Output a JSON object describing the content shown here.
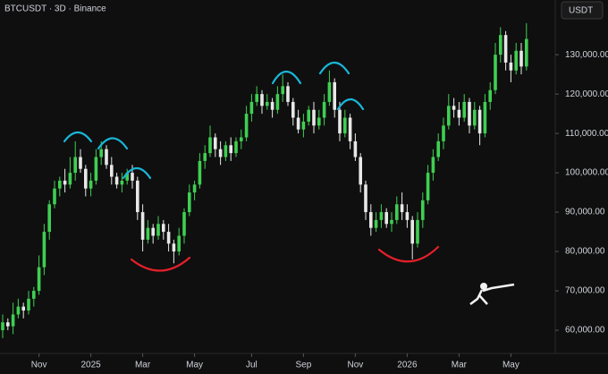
{
  "chart_data": {
    "type": "candlestick",
    "title": "BTCUSDT · 3D · Binance",
    "currency": "USDT",
    "up_color": "#3fcf52",
    "down_color": "#e8e8e8",
    "ylim": [
      54100,
      143900
    ],
    "yticks": [
      {
        "value": 60000,
        "label": "60,000.00"
      },
      {
        "value": 70000,
        "label": "70,000.00"
      },
      {
        "value": 80000,
        "label": "80,000.00"
      },
      {
        "value": 90000,
        "label": "90,000.00"
      },
      {
        "value": 100000,
        "label": "100,000.00"
      },
      {
        "value": 110000,
        "label": "110,000.00"
      },
      {
        "value": 120000,
        "label": "120,000.00"
      },
      {
        "value": 130000,
        "label": "130,000.00"
      }
    ],
    "xticks": [
      {
        "value": 7,
        "label": "Nov"
      },
      {
        "value": 17,
        "label": "2025"
      },
      {
        "value": 27,
        "label": "Mar"
      },
      {
        "value": 37,
        "label": "May"
      },
      {
        "value": 48,
        "label": "Jul"
      },
      {
        "value": 58,
        "label": "Sep"
      },
      {
        "value": 68,
        "label": "Nov"
      },
      {
        "value": 78,
        "label": "2026"
      },
      {
        "value": 88,
        "label": "Mar"
      },
      {
        "value": 98,
        "label": "May"
      }
    ],
    "open": [
      60000,
      62000,
      61000,
      64000,
      66000,
      65000,
      68000,
      70000,
      76000,
      85000,
      92000,
      96000,
      98000,
      97000,
      100000,
      104000,
      101000,
      96000,
      98000,
      104000,
      106000,
      102000,
      99000,
      97000,
      98000,
      100000,
      98000,
      90000,
      83000,
      86000,
      84000,
      87000,
      85000,
      82000,
      80000,
      84000,
      90000,
      95000,
      97000,
      103000,
      105000,
      109000,
      106000,
      104000,
      107000,
      105000,
      108000,
      109000,
      115000,
      118000,
      120000,
      117000,
      118000,
      116000,
      120000,
      122000,
      118000,
      114000,
      111000,
      113000,
      116000,
      112000,
      114000,
      118000,
      123000,
      116000,
      110000,
      114000,
      108000,
      104000,
      97000,
      90000,
      86000,
      88000,
      90000,
      87000,
      88000,
      92000,
      90000,
      88000,
      82000,
      88000,
      93000,
      100000,
      104000,
      108000,
      112000,
      117000,
      116000,
      114000,
      118000,
      112000,
      116000,
      110000,
      118000,
      121000,
      130000,
      135000,
      128000,
      126000,
      131000,
      127000
    ],
    "high": [
      64000,
      63000,
      67000,
      68000,
      67000,
      70000,
      71000,
      79000,
      87000,
      93000,
      98000,
      99000,
      101000,
      104000,
      108000,
      106000,
      102000,
      100000,
      106000,
      108000,
      107000,
      104000,
      100000,
      100000,
      101000,
      102000,
      99000,
      92000,
      88000,
      87000,
      89000,
      88000,
      87000,
      83000,
      86000,
      91000,
      97000,
      98000,
      105000,
      107000,
      112000,
      110000,
      108000,
      108000,
      109000,
      109000,
      111000,
      117000,
      120000,
      122000,
      121000,
      120000,
      119000,
      122000,
      125000,
      123000,
      119000,
      116000,
      115000,
      117000,
      118000,
      116000,
      120000,
      126000,
      124000,
      118000,
      116000,
      115000,
      110000,
      105000,
      98000,
      92000,
      90000,
      92000,
      91000,
      90000,
      94000,
      95000,
      92000,
      89000,
      90000,
      95000,
      102000,
      106000,
      110000,
      114000,
      120000,
      119000,
      118000,
      120000,
      119000,
      118000,
      117000,
      120000,
      123000,
      133000,
      137000,
      136000,
      130000,
      133000,
      133000,
      138000
    ],
    "low": [
      58000,
      60000,
      59000,
      63000,
      63000,
      64000,
      66000,
      69000,
      74000,
      83000,
      91000,
      94000,
      95000,
      96000,
      98000,
      100000,
      94000,
      94000,
      97000,
      102000,
      101000,
      97000,
      96000,
      95000,
      97000,
      96000,
      88000,
      80000,
      82000,
      82000,
      83000,
      83000,
      80000,
      77000,
      79000,
      82000,
      89000,
      93000,
      96000,
      101000,
      104000,
      104000,
      102000,
      103000,
      103000,
      104000,
      106000,
      108000,
      113000,
      117000,
      115000,
      116000,
      114000,
      115000,
      118000,
      117000,
      112000,
      110000,
      109000,
      112000,
      110000,
      111000,
      112000,
      117000,
      114000,
      108000,
      109000,
      106000,
      103000,
      95000,
      88000,
      84000,
      85000,
      86000,
      86000,
      85000,
      87000,
      88000,
      86000,
      78000,
      81000,
      86000,
      92000,
      98000,
      103000,
      106000,
      111000,
      114000,
      112000,
      113000,
      110000,
      111000,
      107000,
      109000,
      116000,
      120000,
      128000,
      126000,
      123000,
      125000,
      125000,
      126000
    ],
    "close": [
      62000,
      61000,
      64000,
      66000,
      65000,
      68000,
      70000,
      76000,
      85000,
      92000,
      96000,
      98000,
      97000,
      100000,
      104000,
      101000,
      96000,
      98000,
      104000,
      106000,
      102000,
      99000,
      97000,
      98000,
      100000,
      98000,
      90000,
      83000,
      86000,
      84000,
      87000,
      85000,
      82000,
      80000,
      84000,
      90000,
      95000,
      97000,
      103000,
      105000,
      109000,
      106000,
      104000,
      107000,
      105000,
      108000,
      109000,
      115000,
      118000,
      120000,
      117000,
      118000,
      116000,
      120000,
      122000,
      118000,
      114000,
      111000,
      113000,
      116000,
      112000,
      114000,
      118000,
      123000,
      116000,
      110000,
      114000,
      108000,
      104000,
      97000,
      90000,
      86000,
      88000,
      90000,
      87000,
      88000,
      92000,
      90000,
      88000,
      82000,
      88000,
      93000,
      100000,
      104000,
      108000,
      112000,
      117000,
      116000,
      114000,
      118000,
      112000,
      116000,
      110000,
      118000,
      121000,
      130000,
      135000,
      128000,
      126000,
      131000,
      127000,
      134000
    ]
  }
}
